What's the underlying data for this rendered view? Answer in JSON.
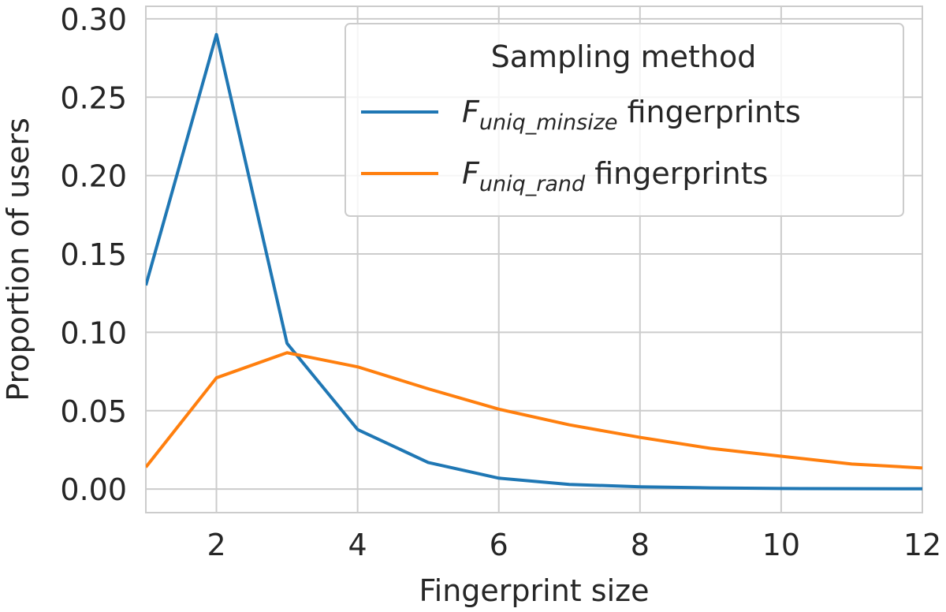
{
  "chart_data": {
    "type": "line",
    "xlabel": "Fingerprint size",
    "ylabel": "Proportion of users",
    "xlim": [
      1,
      12
    ],
    "ylim": [
      -0.015,
      0.308
    ],
    "xticks": [
      2,
      4,
      6,
      8,
      10,
      12
    ],
    "xtick_labels": [
      "2",
      "4",
      "6",
      "8",
      "10",
      "12"
    ],
    "yticks": [
      0.0,
      0.05,
      0.1,
      0.15,
      0.2,
      0.25,
      0.3
    ],
    "ytick_labels": [
      "0.00",
      "0.05",
      "0.10",
      "0.15",
      "0.20",
      "0.25",
      "0.30"
    ],
    "grid": true,
    "legend": {
      "title": "Sampling method",
      "placement": "top-right"
    },
    "x": [
      1,
      2,
      3,
      4,
      5,
      6,
      7,
      8,
      9,
      10,
      11,
      12
    ],
    "series": [
      {
        "name": "F_uniq_minsize fingerprints",
        "label_main": "F",
        "label_sub": "uniq_minsize",
        "label_suffix": " fingerprints",
        "color": "#1f77b4",
        "values": [
          0.13,
          0.29,
          0.093,
          0.038,
          0.017,
          0.007,
          0.003,
          0.0015,
          0.0008,
          0.0004,
          0.0003,
          0.0002
        ]
      },
      {
        "name": "F_uniq_rand fingerprints",
        "label_main": "F",
        "label_sub": "uniq_rand",
        "label_suffix": " fingerprints",
        "color": "#ff7f0e",
        "values": [
          0.014,
          0.071,
          0.087,
          0.078,
          0.064,
          0.051,
          0.041,
          0.033,
          0.026,
          0.021,
          0.016,
          0.0135
        ]
      }
    ]
  }
}
